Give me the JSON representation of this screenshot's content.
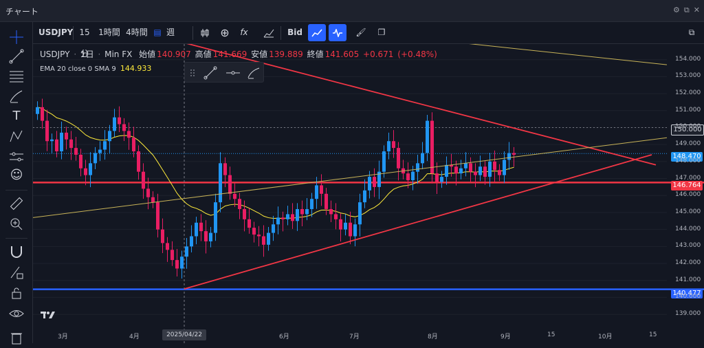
{
  "window": {
    "title": "チャート"
  },
  "toolbar": {
    "symbol": "USDJPY",
    "intervals": [
      "15分",
      "1時間",
      "4時間"
    ],
    "calendar_icon": "calendar-icon",
    "active_interval": "週",
    "bid_label": "Bid"
  },
  "legend": {
    "symbol": "USDJPY",
    "interval": "1日",
    "broker": "Min FX",
    "open_label": "始値",
    "open": "140.907",
    "high_label": "高値",
    "high": "141.669",
    "low_label": "安値",
    "low": "139.889",
    "close_label": "終値",
    "close": "141.605",
    "change": "+0.671",
    "change_pct": "(+0.48%)",
    "indicator_label": "EMA 20 close 0 SMA 9",
    "indicator_value": "144.933"
  },
  "colors": {
    "background": "#131722",
    "up_candle": "#2196f3",
    "down_candle": "#e91e63",
    "ema_line": "#ffeb3b",
    "trend_red": "#f23645",
    "support_blue": "#2962ff",
    "current_price_bg": "#2196f3"
  },
  "price_labels": {
    "line_150": "150.000",
    "current": "148.470",
    "resistance": "146.764",
    "support": "140.477"
  },
  "hover_date": "2025/04/22",
  "chart_data": {
    "type": "candlestick",
    "symbol": "USDJPY",
    "interval": "1日",
    "ylim": [
      138.6,
      155.0
    ],
    "y_ticks": [
      "154.000",
      "153.000",
      "152.000",
      "151.000",
      "150.000",
      "149.000",
      "148.000",
      "147.000",
      "146.000",
      "145.000",
      "144.000",
      "143.000",
      "142.000",
      "141.000",
      "140.000",
      "139.000"
    ],
    "x_ticks": [
      "3月",
      "4月",
      "2025/04/22",
      "6月",
      "7月",
      "8月",
      "9月",
      "15",
      "10月",
      "15"
    ],
    "close_series": [
      151.2,
      150.4,
      149.2,
      149.3,
      148.6,
      149.7,
      149.3,
      148.8,
      148.4,
      147.6,
      147.2,
      147.9,
      148.5,
      148.7,
      149.2,
      149.8,
      150.6,
      150.2,
      149.8,
      149.4,
      148.6,
      147.4,
      146.4,
      145.9,
      145.6,
      144.0,
      143.2,
      142.8,
      142.2,
      141.7,
      142.4,
      143.0,
      143.6,
      144.4,
      143.9,
      143.3,
      143.8,
      145.6,
      147.9,
      147.2,
      146.1,
      145.8,
      145.2,
      144.6,
      144.1,
      143.7,
      143.6,
      143.1,
      143.8,
      144.3,
      144.7,
      144.6,
      144.9,
      144.5,
      145.2,
      144.9,
      145.2,
      145.8,
      146.6,
      146.1,
      145.2,
      144.9,
      144.6,
      144.0,
      144.4,
      143.6,
      144.3,
      145.6,
      146.3,
      147.1,
      146.5,
      147.4,
      148.6,
      149.2,
      148.8,
      147.6,
      147.3,
      146.9,
      147.4,
      147.9,
      148.5,
      150.4,
      147.3,
      146.8,
      147.1,
      147.8,
      147.7,
      147.3,
      147.6,
      147.9,
      147.4,
      147.2,
      147.7,
      147.1,
      148.0,
      147.5,
      147.2,
      148.1,
      148.5,
      148.4
    ],
    "ema_label": "EMA 20 close 0 SMA 9",
    "ema_value": 144.933,
    "horizontal_levels": [
      {
        "label": "150.000",
        "value": 150.0,
        "style": "dashed"
      },
      {
        "label": "146.764",
        "value": 146.764,
        "color": "#f23645"
      },
      {
        "label": "140.477",
        "value": 140.477,
        "color": "#2962ff"
      }
    ],
    "current_price": 148.47
  }
}
